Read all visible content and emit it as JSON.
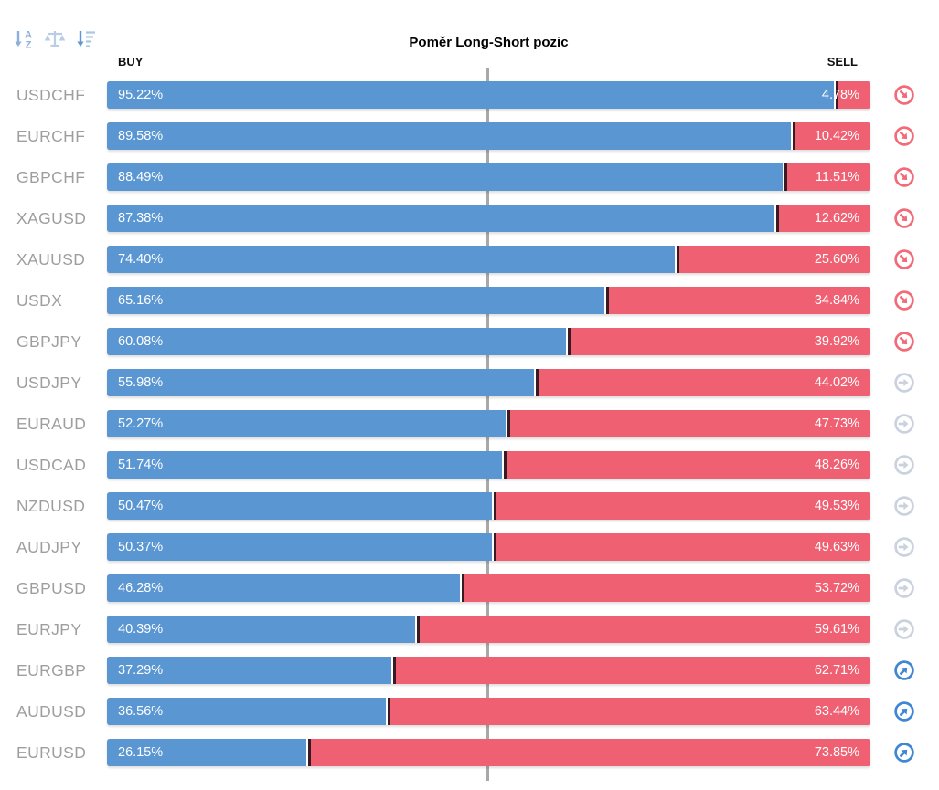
{
  "title": "Poměr Long-Short pozic",
  "header": {
    "buy_label": "BUY",
    "sell_label": "SELL"
  },
  "toolbar": {
    "sort_alpha_icon": "sort-alphabetical-icon",
    "balance_icon": "balance-scale-icon",
    "sort_amount_icon": "sort-amount-icon"
  },
  "colors": {
    "buy_bar": "#5996d2",
    "sell_bar": "#ef6072",
    "divider_dark": "#371a22",
    "center_line": "#a8a8a8",
    "symbol_text": "#9e9e9e",
    "trend_down_icon": "#f26b79",
    "trend_flat_icon": "#c9d2de",
    "trend_up_icon": "#3f87d3",
    "sort_icon_primary": "#8cb0d9",
    "sort_icon_secondary": "#b9cde6",
    "sort_icon_tertiary": "#5e98d4",
    "sort_icon_lines": "#a9c6e3"
  },
  "rows": [
    {
      "symbol": "USDCHF",
      "buy": 95.22,
      "sell": 4.78,
      "buy_label": "95.22%",
      "sell_label": "4.78%",
      "trend": "down"
    },
    {
      "symbol": "EURCHF",
      "buy": 89.58,
      "sell": 10.42,
      "buy_label": "89.58%",
      "sell_label": "10.42%",
      "trend": "down"
    },
    {
      "symbol": "GBPCHF",
      "buy": 88.49,
      "sell": 11.51,
      "buy_label": "88.49%",
      "sell_label": "11.51%",
      "trend": "down"
    },
    {
      "symbol": "XAGUSD",
      "buy": 87.38,
      "sell": 12.62,
      "buy_label": "87.38%",
      "sell_label": "12.62%",
      "trend": "down"
    },
    {
      "symbol": "XAUUSD",
      "buy": 74.4,
      "sell": 25.6,
      "buy_label": "74.40%",
      "sell_label": "25.60%",
      "trend": "down"
    },
    {
      "symbol": "USDX",
      "buy": 65.16,
      "sell": 34.84,
      "buy_label": "65.16%",
      "sell_label": "34.84%",
      "trend": "down"
    },
    {
      "symbol": "GBPJPY",
      "buy": 60.08,
      "sell": 39.92,
      "buy_label": "60.08%",
      "sell_label": "39.92%",
      "trend": "down"
    },
    {
      "symbol": "USDJPY",
      "buy": 55.98,
      "sell": 44.02,
      "buy_label": "55.98%",
      "sell_label": "44.02%",
      "trend": "flat"
    },
    {
      "symbol": "EURAUD",
      "buy": 52.27,
      "sell": 47.73,
      "buy_label": "52.27%",
      "sell_label": "47.73%",
      "trend": "flat"
    },
    {
      "symbol": "USDCAD",
      "buy": 51.74,
      "sell": 48.26,
      "buy_label": "51.74%",
      "sell_label": "48.26%",
      "trend": "flat"
    },
    {
      "symbol": "NZDUSD",
      "buy": 50.47,
      "sell": 49.53,
      "buy_label": "50.47%",
      "sell_label": "49.53%",
      "trend": "flat"
    },
    {
      "symbol": "AUDJPY",
      "buy": 50.37,
      "sell": 49.63,
      "buy_label": "50.37%",
      "sell_label": "49.63%",
      "trend": "flat"
    },
    {
      "symbol": "GBPUSD",
      "buy": 46.28,
      "sell": 53.72,
      "buy_label": "46.28%",
      "sell_label": "53.72%",
      "trend": "flat"
    },
    {
      "symbol": "EURJPY",
      "buy": 40.39,
      "sell": 59.61,
      "buy_label": "40.39%",
      "sell_label": "59.61%",
      "trend": "flat"
    },
    {
      "symbol": "EURGBP",
      "buy": 37.29,
      "sell": 62.71,
      "buy_label": "37.29%",
      "sell_label": "62.71%",
      "trend": "up"
    },
    {
      "symbol": "AUDUSD",
      "buy": 36.56,
      "sell": 63.44,
      "buy_label": "36.56%",
      "sell_label": "63.44%",
      "trend": "up"
    },
    {
      "symbol": "EURUSD",
      "buy": 26.15,
      "sell": 73.85,
      "buy_label": "26.15%",
      "sell_label": "73.85%",
      "trend": "up"
    }
  ],
  "chart_data": {
    "type": "bar",
    "orientation": "horizontal",
    "stacked": true,
    "title": "Poměr Long-Short pozic",
    "categories": [
      "USDCHF",
      "EURCHF",
      "GBPCHF",
      "XAGUSD",
      "XAUUSD",
      "USDX",
      "GBPJPY",
      "USDJPY",
      "EURAUD",
      "USDCAD",
      "NZDUSD",
      "AUDJPY",
      "GBPUSD",
      "EURJPY",
      "EURGBP",
      "AUDUSD",
      "EURUSD"
    ],
    "series": [
      {
        "name": "BUY",
        "color": "#5996d2",
        "values": [
          95.22,
          89.58,
          88.49,
          87.38,
          74.4,
          65.16,
          60.08,
          55.98,
          52.27,
          51.74,
          50.47,
          50.37,
          46.28,
          40.39,
          37.29,
          36.56,
          26.15
        ]
      },
      {
        "name": "SELL",
        "color": "#ef6072",
        "values": [
          4.78,
          10.42,
          11.51,
          12.62,
          25.6,
          34.84,
          39.92,
          44.02,
          47.73,
          48.26,
          49.53,
          49.63,
          53.72,
          59.61,
          62.71,
          63.44,
          73.85
        ]
      }
    ],
    "value_format": "percent",
    "xlim": [
      0,
      100
    ],
    "center_reference_line": 50,
    "grid": false,
    "legend_position": "top (BUY left / SELL right)"
  }
}
